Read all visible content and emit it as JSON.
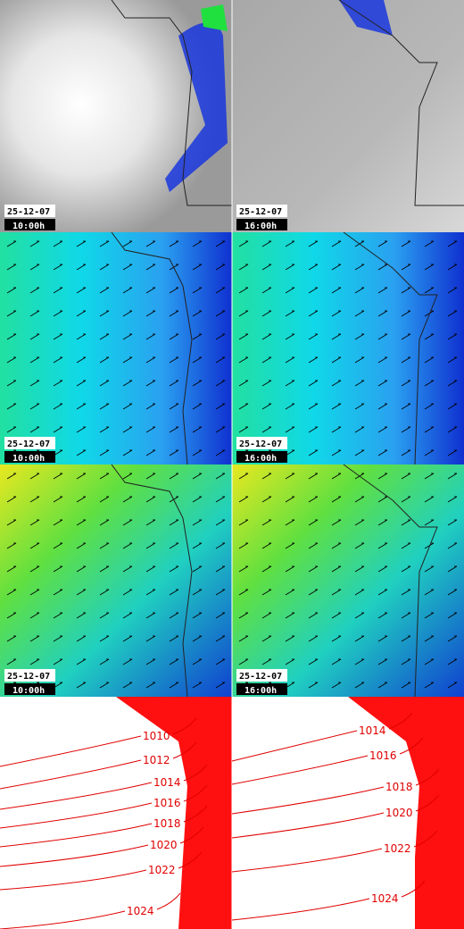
{
  "panels": [
    {
      "date": "25-12-07",
      "time": "10:00h"
    },
    {
      "date": "25-12-07",
      "time": "16:00h"
    },
    {
      "date": "25-12-07",
      "time": "10:00h"
    },
    {
      "date": "25-12-07",
      "time": "16:00h"
    },
    {
      "date": "25-12-07",
      "time": "10:00h"
    },
    {
      "date": "25-12-07",
      "time": "16:00h"
    }
  ],
  "isobars": [
    {
      "labels": [
        1010,
        1012,
        1014,
        1016,
        1018,
        1020,
        1022,
        1024
      ]
    },
    {
      "labels": [
        1014,
        1016,
        1018,
        1020,
        1022,
        1024
      ]
    }
  ]
}
